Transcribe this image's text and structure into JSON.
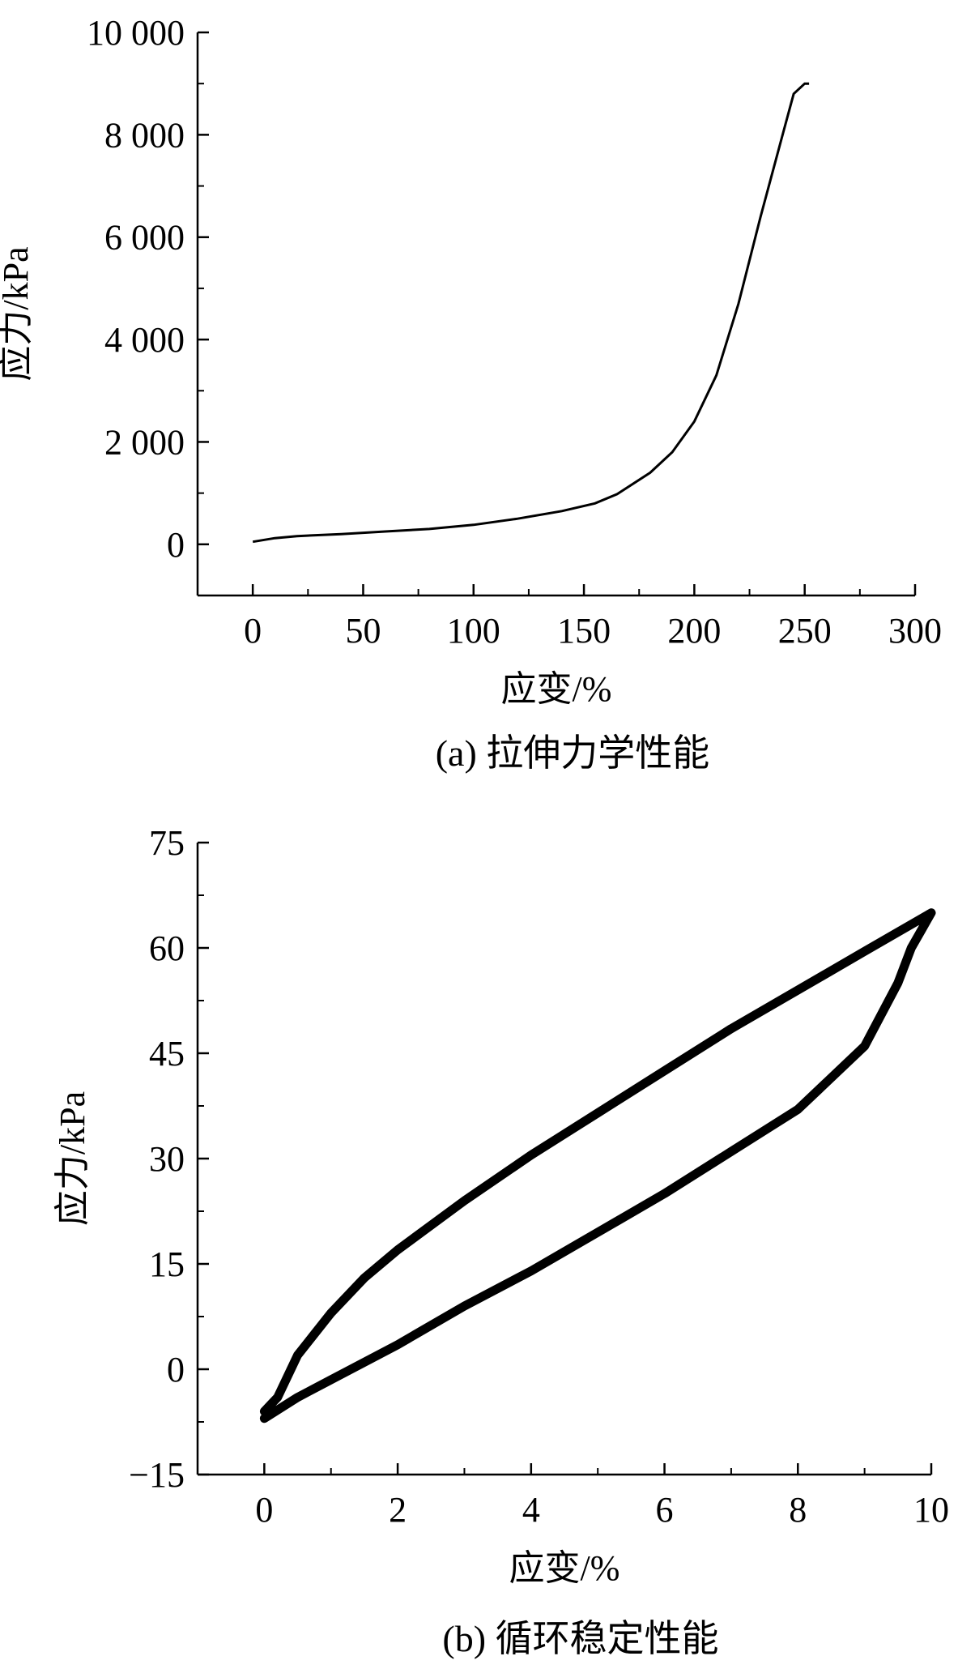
{
  "chart_data": [
    {
      "type": "line",
      "caption": "(a) 拉伸力学性能",
      "xlabel": "应变/%",
      "ylabel": "应力/kPa",
      "xlim": [
        -25,
        300
      ],
      "ylim": [
        -1000,
        10000
      ],
      "xticks": [
        0,
        50,
        100,
        150,
        200,
        250,
        300
      ],
      "xtick_labels": [
        "0",
        "50",
        "100",
        "150",
        "200",
        "250",
        "300"
      ],
      "yticks": [
        0,
        2000,
        4000,
        6000,
        8000,
        10000
      ],
      "ytick_labels": [
        "0",
        "2 000",
        "4 000",
        "6 000",
        "8 000",
        "10 000"
      ],
      "grid": false,
      "series": [
        {
          "x": [
            0,
            10,
            20,
            40,
            60,
            80,
            100,
            120,
            140,
            155,
            165,
            180,
            190,
            200,
            210,
            220,
            230,
            240,
            245,
            250,
            252
          ],
          "y": [
            50,
            120,
            160,
            200,
            250,
            300,
            380,
            500,
            650,
            800,
            980,
            1400,
            1800,
            2400,
            3300,
            4700,
            6400,
            8000,
            8800,
            9000,
            9000
          ]
        }
      ]
    },
    {
      "type": "line",
      "caption": "(b) 循环稳定性能",
      "xlabel": "应变/%",
      "ylabel": "应力/kPa",
      "xlim": [
        -1,
        10
      ],
      "ylim": [
        -15,
        75
      ],
      "xticks": [
        0,
        2,
        4,
        6,
        8,
        10
      ],
      "xtick_labels": [
        "0",
        "2",
        "4",
        "6",
        "8",
        "10"
      ],
      "yticks": [
        -15,
        0,
        15,
        30,
        45,
        60,
        75
      ],
      "ytick_labels": [
        "−15",
        "0",
        "15",
        "30",
        "45",
        "60",
        "75"
      ],
      "grid": false,
      "series": [
        {
          "x": [
            0,
            0.1,
            0.2,
            0.5,
            1,
            1.5,
            2,
            3,
            4,
            5,
            6,
            7,
            8,
            9,
            10,
            9.7,
            9.5,
            9,
            8,
            7,
            6,
            5,
            4,
            3,
            2,
            1,
            0.5,
            0
          ],
          "y": [
            -6,
            -5,
            -4,
            2,
            8,
            13,
            17,
            24,
            30.5,
            36.5,
            42.5,
            48.5,
            54,
            59.5,
            65,
            60,
            55,
            46,
            37,
            31,
            25,
            19.5,
            14,
            9,
            3.5,
            -1.5,
            -4,
            -7
          ]
        }
      ]
    }
  ]
}
